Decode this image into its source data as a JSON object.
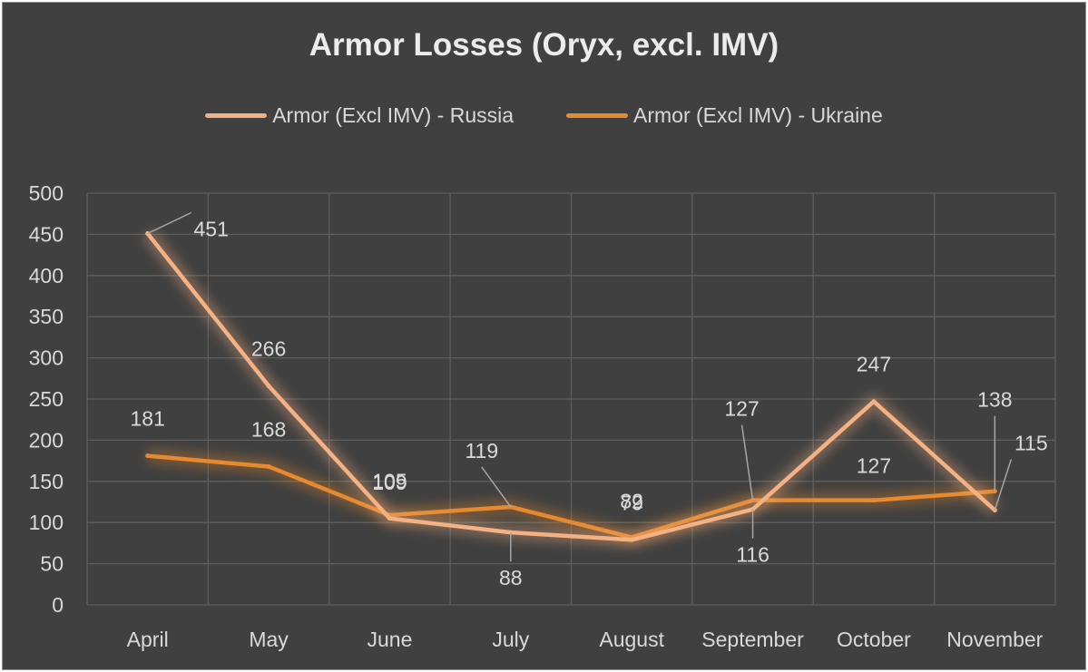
{
  "chart_data": {
    "type": "line",
    "title": "Armor Losses (Oryx, excl. IMV)",
    "categories": [
      "April",
      "May",
      "June",
      "July",
      "August",
      "September",
      "October",
      "November"
    ],
    "ylim": [
      0,
      500
    ],
    "yticks": [
      0,
      50,
      100,
      150,
      200,
      250,
      300,
      350,
      400,
      450,
      500
    ],
    "grid": true,
    "legend_position": "top",
    "series": [
      {
        "name": "Armor (Excl IMV) - Russia",
        "color": "#f4b183",
        "values": [
          451,
          266,
          105,
          88,
          79,
          116,
          247,
          115
        ],
        "labels": [
          "451",
          "266",
          "105",
          "88",
          "79",
          "116",
          "247",
          "115"
        ]
      },
      {
        "name": "Armor (Excl IMV) - Ukraine",
        "color": "#e6892f",
        "values": [
          181,
          168,
          109,
          119,
          82,
          127,
          127,
          138
        ],
        "labels": [
          "181",
          "168",
          "109",
          "119",
          "82",
          "127",
          "127",
          "138"
        ]
      }
    ]
  }
}
